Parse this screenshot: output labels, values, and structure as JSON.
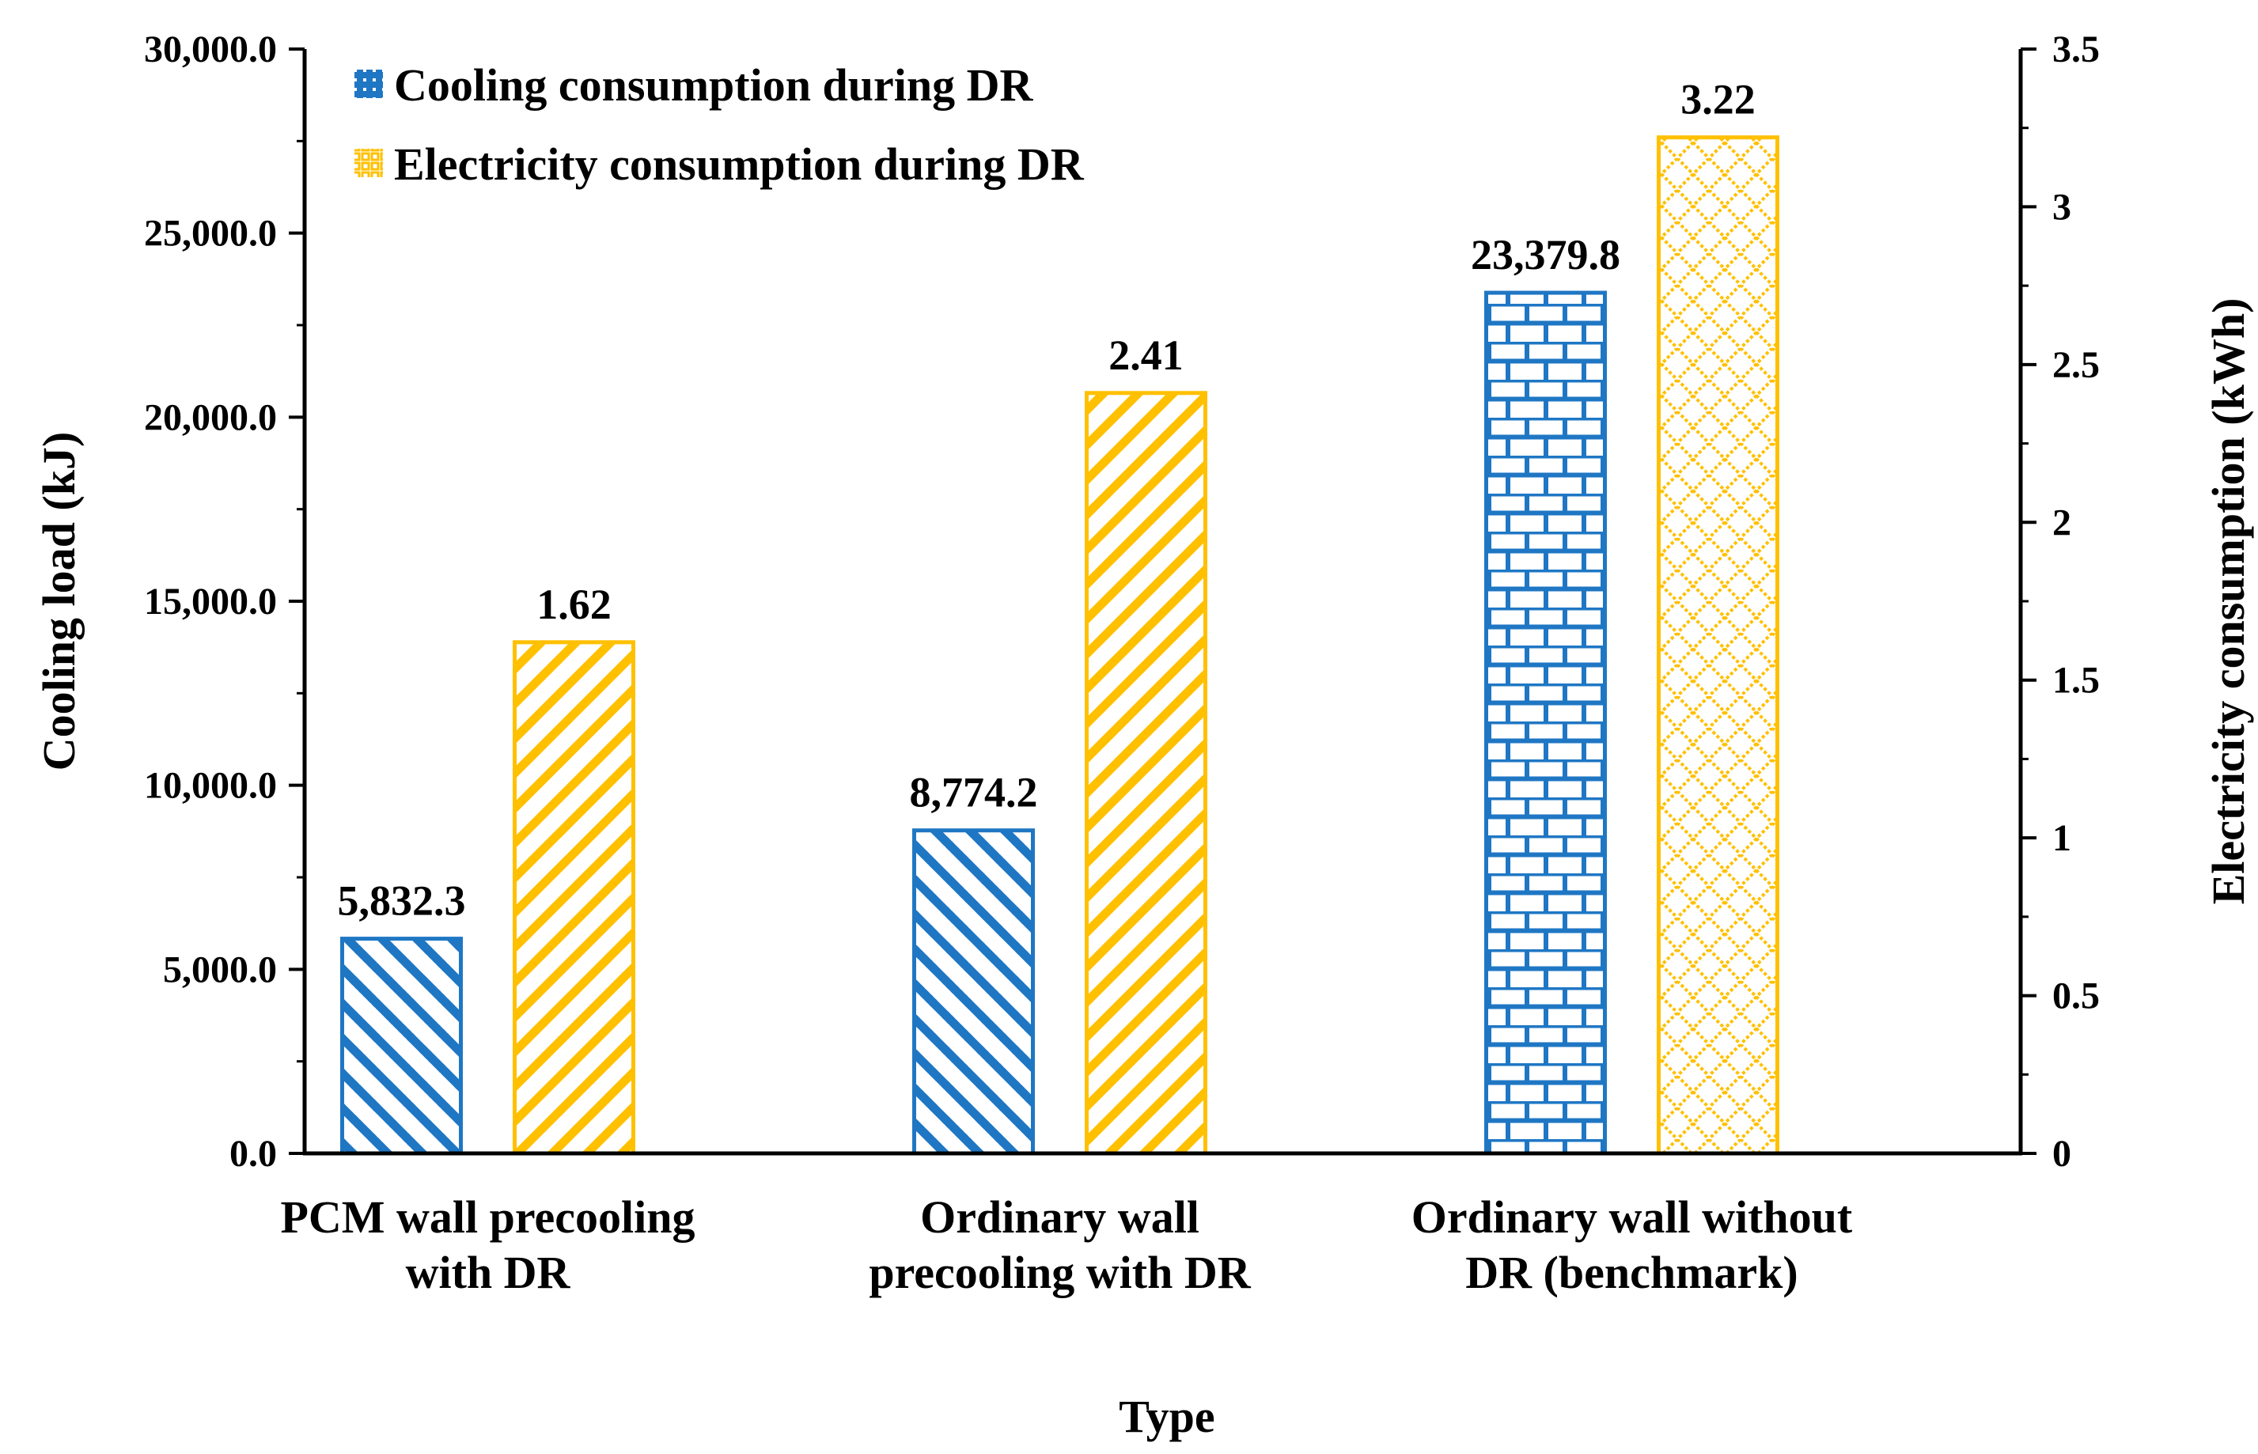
{
  "chart_data": {
    "type": "bar",
    "title": "",
    "categories": [
      [
        "PCM wall precooling",
        "with  DR"
      ],
      [
        "Ordinary wall",
        "precooling with DR"
      ],
      [
        "Ordinary wall without",
        "DR (benchmark)"
      ]
    ],
    "xlabel": "Type",
    "ylabel": "Cooling load (kJ)",
    "ylabel_right": "Electricity consumption  (kWh)",
    "ylim": [
      0,
      30000
    ],
    "ylim_right": [
      0,
      3.5
    ],
    "yticks": [
      "0.0",
      "5,000.0",
      "10,000.0",
      "15,000.0",
      "20,000.0",
      "25,000.0",
      "30,000.0"
    ],
    "yticks_right": [
      "0",
      "0.5",
      "1",
      "1.5",
      "2",
      "2.5",
      "3",
      "3.5"
    ],
    "grid": false,
    "legend_position": "top-left",
    "series": [
      {
        "name": "Cooling consumption during DR",
        "axis": "left",
        "color": "#1f77c4",
        "values": [
          5832.3,
          8774.2,
          23379.8
        ],
        "labels": [
          "5,832.3",
          "8,774.2",
          "23,379.8"
        ],
        "patterns": [
          "diag-down",
          "diag-down",
          "brick"
        ]
      },
      {
        "name": "Electricity consumption during DR",
        "axis": "right",
        "color": "#ffc000",
        "values": [
          1.62,
          2.41,
          3.22
        ],
        "labels": [
          "1.62",
          "2.41",
          "3.22"
        ],
        "patterns": [
          "diag-up",
          "diag-up",
          "lattice"
        ]
      }
    ]
  }
}
